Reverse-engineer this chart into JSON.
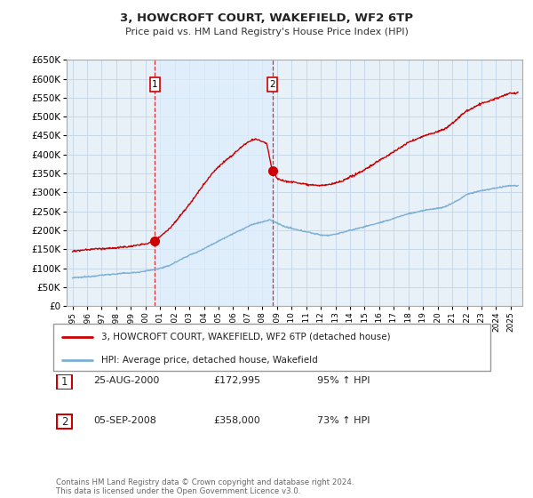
{
  "title": "3, HOWCROFT COURT, WAKEFIELD, WF2 6TP",
  "subtitle": "Price paid vs. HM Land Registry's House Price Index (HPI)",
  "footer": "Contains HM Land Registry data © Crown copyright and database right 2024.\nThis data is licensed under the Open Government Licence v3.0.",
  "legend_line1": "3, HOWCROFT COURT, WAKEFIELD, WF2 6TP (detached house)",
  "legend_line2": "HPI: Average price, detached house, Wakefield",
  "sale1_label": "1",
  "sale1_date": "25-AUG-2000",
  "sale1_price": "£172,995",
  "sale1_hpi": "95% ↑ HPI",
  "sale2_label": "2",
  "sale2_date": "05-SEP-2008",
  "sale2_price": "£358,000",
  "sale2_hpi": "73% ↑ HPI",
  "property_color": "#cc0000",
  "hpi_color": "#7bafd4",
  "shade_color": "#ddeeff",
  "background_color": "#ffffff",
  "plot_bg_color": "#e8f0f8",
  "grid_color": "#c8d8e8",
  "ylim": [
    0,
    650000
  ],
  "yticks": [
    0,
    50000,
    100000,
    150000,
    200000,
    250000,
    300000,
    350000,
    400000,
    450000,
    500000,
    550000,
    600000,
    650000
  ],
  "sale1_x": 2000.65,
  "sale1_y": 172995,
  "sale2_x": 2008.68,
  "sale2_y": 358000,
  "xlim_start": 1994.6,
  "xlim_end": 2025.8
}
